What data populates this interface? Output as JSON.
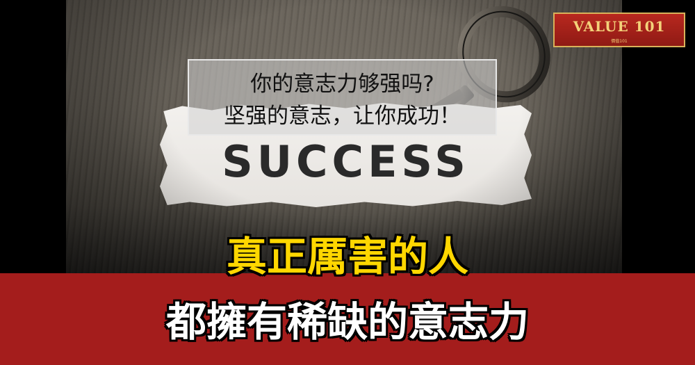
{
  "logo": {
    "main": "VALUE 101",
    "sub": "價值101"
  },
  "photo": {
    "paper_word": "SUCCESS",
    "caption": {
      "line1": "你的意志力够强吗?",
      "line2": "坚强的意志，让你成功！"
    }
  },
  "headline": {
    "line1": "真正厲害的人",
    "line2": "都擁有稀缺的意志力",
    "line1_color": "#ffd700",
    "line2_color": "#ffffff",
    "band_color": "#a41d1c"
  }
}
